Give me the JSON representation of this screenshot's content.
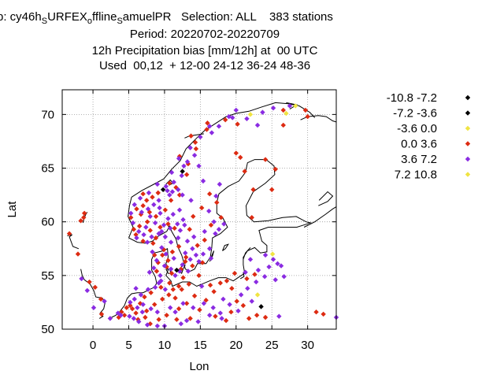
{
  "header": {
    "line1_a": "p: cy46h",
    "line1_sub1": "S",
    "line1_b": "URFEX",
    "line1_sub2": "o",
    "line1_c": "ffline",
    "line1_sub3": "S",
    "line1_d": "amuelPR   Selection: ALL    383 stations",
    "line2": "Period: 20220702-20220709",
    "line3": "12h Precipitation bias [mm/12h] at  00 UTC",
    "line4": "Used  00,12  + 12-00 24-12 36-24 48-36"
  },
  "chart_data": {
    "type": "scatter",
    "xlabel": "Lon",
    "ylabel": "Lat",
    "xlim": [
      -4.3,
      34
    ],
    "ylim": [
      50,
      72.3
    ],
    "xticks": [
      0,
      5,
      10,
      15,
      20,
      25,
      30
    ],
    "yticks": [
      50,
      55,
      60,
      65,
      70
    ],
    "grid": true,
    "legend_position": "right",
    "classes": [
      {
        "label": "-10.8 -7.2",
        "color": "#000000"
      },
      {
        "label": "-7.2 -3.6",
        "color": "#000000"
      },
      {
        "label": "-3.6 0.0",
        "color": "#f0e442"
      },
      {
        "label": "0.0 3.6",
        "color": "#dd2b12"
      },
      {
        "label": "3.6 7.2",
        "color": "#8a2be2"
      },
      {
        "label": "7.2 10.8",
        "color": "#f0e442"
      }
    ],
    "points": [
      [
        23.5,
        52.1,
        1
      ],
      [
        12.5,
        64.7,
        1
      ],
      [
        11.7,
        55.5,
        1
      ],
      [
        9.8,
        63.0,
        1
      ],
      [
        9.5,
        54.5,
        4
      ],
      [
        23.0,
        53.2,
        2
      ],
      [
        25.1,
        57.0,
        2
      ],
      [
        27.0,
        70.1,
        2
      ],
      [
        28.3,
        70.8,
        2
      ],
      [
        22.0,
        70.0,
        2
      ],
      [
        18.5,
        69.5,
        3
      ],
      [
        20.2,
        69.1,
        3
      ],
      [
        26.6,
        70.4,
        3
      ],
      [
        29.7,
        70.4,
        3
      ],
      [
        15.9,
        68.6,
        3
      ],
      [
        14.3,
        67.4,
        3
      ],
      [
        13.3,
        65.4,
        3
      ],
      [
        14.4,
        66.8,
        3
      ],
      [
        12.1,
        66.1,
        3
      ],
      [
        13.1,
        64.4,
        3
      ],
      [
        10.7,
        63.6,
        3
      ],
      [
        11.6,
        63.2,
        3
      ],
      [
        9.1,
        62.7,
        3
      ],
      [
        8.3,
        62.3,
        3
      ],
      [
        7.5,
        62.0,
        3
      ],
      [
        7.0,
        61.5,
        3
      ],
      [
        6.1,
        61.2,
        3
      ],
      [
        7.9,
        60.9,
        3
      ],
      [
        6.7,
        60.7,
        3
      ],
      [
        8.8,
        60.5,
        3
      ],
      [
        7.6,
        60.0,
        3
      ],
      [
        6.5,
        59.6,
        3
      ],
      [
        9.4,
        59.5,
        3
      ],
      [
        8.0,
        59.2,
        3
      ],
      [
        10.5,
        59.8,
        3
      ],
      [
        11.4,
        59.4,
        3
      ],
      [
        8.8,
        58.5,
        3
      ],
      [
        7.0,
        58.2,
        3
      ],
      [
        6.0,
        58.8,
        3
      ],
      [
        5.7,
        59.3,
        3
      ],
      [
        10.1,
        61.1,
        3
      ],
      [
        10.9,
        62.0,
        3
      ],
      [
        12.1,
        62.5,
        3
      ],
      [
        14.0,
        60.5,
        3
      ],
      [
        13.5,
        59.3,
        3
      ],
      [
        15.2,
        61.3,
        3
      ],
      [
        16.3,
        62.6,
        3
      ],
      [
        17.3,
        61.8,
        3
      ],
      [
        16.5,
        59.7,
        3
      ],
      [
        17.9,
        60.4,
        3
      ],
      [
        15.6,
        58.3,
        3
      ],
      [
        14.6,
        57.8,
        3
      ],
      [
        13.0,
        56.7,
        3
      ],
      [
        13.9,
        55.9,
        3
      ],
      [
        12.9,
        56.3,
        3
      ],
      [
        11.1,
        57.2,
        3
      ],
      [
        12.0,
        57.7,
        3
      ],
      [
        12.3,
        55.6,
        3
      ],
      [
        11.0,
        55.2,
        3
      ],
      [
        10.3,
        55.8,
        3
      ],
      [
        9.1,
        56.2,
        3
      ],
      [
        8.6,
        56.9,
        3
      ],
      [
        9.9,
        57.4,
        3
      ],
      [
        10.5,
        56.4,
        3
      ],
      [
        12.6,
        54.8,
        3
      ],
      [
        10.7,
        54.3,
        3
      ],
      [
        9.5,
        53.9,
        3
      ],
      [
        8.1,
        53.4,
        3
      ],
      [
        7.2,
        53.0,
        3
      ],
      [
        6.6,
        52.4,
        3
      ],
      [
        5.5,
        51.9,
        3
      ],
      [
        6.0,
        51.5,
        3
      ],
      [
        7.5,
        51.7,
        3
      ],
      [
        8.6,
        52.3,
        3
      ],
      [
        9.7,
        52.8,
        3
      ],
      [
        10.6,
        53.2,
        3
      ],
      [
        11.5,
        52.9,
        3
      ],
      [
        12.4,
        53.7,
        3
      ],
      [
        13.4,
        54.2,
        3
      ],
      [
        13.1,
        52.4,
        3
      ],
      [
        14.2,
        53.1,
        3
      ],
      [
        12.0,
        51.9,
        3
      ],
      [
        10.3,
        51.3,
        3
      ],
      [
        11.7,
        50.9,
        3
      ],
      [
        13.6,
        51.0,
        3
      ],
      [
        14.9,
        51.8,
        3
      ],
      [
        15.8,
        52.7,
        3
      ],
      [
        16.9,
        53.5,
        3
      ],
      [
        17.8,
        54.3,
        3
      ],
      [
        18.7,
        54.5,
        3
      ],
      [
        19.4,
        53.8,
        3
      ],
      [
        20.1,
        52.6,
        3
      ],
      [
        21.0,
        52.2,
        3
      ],
      [
        19.3,
        51.6,
        3
      ],
      [
        17.1,
        51.2,
        3
      ],
      [
        18.6,
        50.8,
        3
      ],
      [
        21.8,
        51.0,
        3
      ],
      [
        22.9,
        51.3,
        3
      ],
      [
        24.1,
        51.1,
        3
      ],
      [
        19.8,
        55.2,
        3
      ],
      [
        21.5,
        54.7,
        3
      ],
      [
        22.6,
        55.1,
        3
      ],
      [
        4.4,
        51.3,
        3
      ],
      [
        3.6,
        51.1,
        3
      ],
      [
        1.1,
        52.8,
        3
      ],
      [
        0.3,
        53.9,
        3
      ],
      [
        -0.5,
        54.4,
        3
      ],
      [
        1.2,
        51.4,
        3
      ],
      [
        -2.1,
        57.0,
        3
      ],
      [
        -3.3,
        58.9,
        3
      ],
      [
        -1.3,
        60.4,
        3
      ],
      [
        -1.2,
        60.8,
        3
      ],
      [
        -1.7,
        60.1,
        3
      ],
      [
        5.3,
        60.4,
        3
      ],
      [
        7.0,
        62.6,
        3
      ],
      [
        13.7,
        68.0,
        3
      ],
      [
        16.0,
        69.2,
        3
      ],
      [
        24.1,
        65.8,
        3
      ],
      [
        21.2,
        64.7,
        3
      ],
      [
        20.0,
        66.4,
        3
      ],
      [
        20.6,
        66.0,
        3
      ],
      [
        22.4,
        63.0,
        3
      ],
      [
        25.5,
        64.9,
        3
      ],
      [
        25.0,
        63.0,
        3
      ],
      [
        22.2,
        60.4,
        3
      ],
      [
        31.2,
        51.6,
        3
      ],
      [
        32.2,
        51.4,
        3
      ],
      [
        26.6,
        69.0,
        3
      ],
      [
        30.0,
        69.8,
        3
      ],
      [
        8.4,
        58.0,
        3
      ],
      [
        5.2,
        52.2,
        3
      ],
      [
        4.7,
        52.0,
        3
      ],
      [
        4.0,
        51.6,
        3
      ],
      [
        6.3,
        50.9,
        3
      ],
      [
        8.0,
        50.5,
        3
      ],
      [
        9.2,
        50.9,
        3
      ],
      [
        7.3,
        51.1,
        3
      ],
      [
        16.4,
        54.1,
        3
      ],
      [
        14.8,
        55.0,
        3
      ],
      [
        15.3,
        56.2,
        3
      ],
      [
        12.0,
        54.0,
        3
      ],
      [
        11.2,
        53.7,
        3
      ],
      [
        8.9,
        55.4,
        3
      ],
      [
        9.7,
        56.9,
        3
      ],
      [
        27.5,
        70.8,
        4
      ],
      [
        25.2,
        70.6,
        4
      ],
      [
        23.7,
        70.2,
        4
      ],
      [
        21.5,
        69.6,
        4
      ],
      [
        19.5,
        69.7,
        4
      ],
      [
        17.6,
        68.9,
        4
      ],
      [
        16.6,
        68.3,
        4
      ],
      [
        15.0,
        67.9,
        4
      ],
      [
        14.2,
        66.2,
        4
      ],
      [
        13.2,
        65.6,
        4
      ],
      [
        12.7,
        65.2,
        4
      ],
      [
        12.4,
        64.3,
        4
      ],
      [
        11.3,
        63.7,
        4
      ],
      [
        10.2,
        63.3,
        4
      ],
      [
        11.9,
        63.0,
        4
      ],
      [
        10.7,
        62.5,
        4
      ],
      [
        9.2,
        62.0,
        4
      ],
      [
        8.5,
        61.6,
        4
      ],
      [
        7.7,
        61.2,
        4
      ],
      [
        6.8,
        60.9,
        4
      ],
      [
        8.0,
        60.5,
        4
      ],
      [
        9.4,
        60.8,
        4
      ],
      [
        10.5,
        60.3,
        4
      ],
      [
        11.2,
        60.7,
        4
      ],
      [
        12.1,
        61.1,
        4
      ],
      [
        9.9,
        59.7,
        4
      ],
      [
        8.7,
        59.9,
        4
      ],
      [
        7.4,
        59.5,
        4
      ],
      [
        6.4,
        59.1,
        4
      ],
      [
        7.1,
        58.8,
        4
      ],
      [
        8.2,
        58.6,
        4
      ],
      [
        9.6,
        59.1,
        4
      ],
      [
        10.8,
        59.4,
        4
      ],
      [
        11.8,
        59.8,
        4
      ],
      [
        12.6,
        60.2,
        4
      ],
      [
        11.9,
        58.5,
        4
      ],
      [
        10.9,
        58.1,
        4
      ],
      [
        9.6,
        57.6,
        4
      ],
      [
        8.3,
        57.2,
        4
      ],
      [
        10.2,
        57.0,
        4
      ],
      [
        11.3,
        56.6,
        4
      ],
      [
        12.5,
        56.0,
        4
      ],
      [
        13.6,
        56.5,
        4
      ],
      [
        14.4,
        56.9,
        4
      ],
      [
        16.3,
        57.5,
        4
      ],
      [
        15.4,
        57.0,
        4
      ],
      [
        13.9,
        57.5,
        4
      ],
      [
        12.9,
        57.1,
        4
      ],
      [
        14.1,
        58.6,
        4
      ],
      [
        13.2,
        58.2,
        4
      ],
      [
        12.2,
        59.2,
        4
      ],
      [
        15.6,
        59.1,
        4
      ],
      [
        16.9,
        60.0,
        4
      ],
      [
        17.6,
        59.3,
        4
      ],
      [
        18.3,
        59.8,
        4
      ],
      [
        16.2,
        61.0,
        4
      ],
      [
        17.2,
        62.4,
        4
      ],
      [
        17.7,
        63.5,
        4
      ],
      [
        15.4,
        63.8,
        4
      ],
      [
        14.8,
        65.2,
        4
      ],
      [
        13.7,
        62.0,
        4
      ],
      [
        12.5,
        62.5,
        4
      ],
      [
        11.0,
        64.6,
        4
      ],
      [
        10.4,
        62.9,
        4
      ],
      [
        9.0,
        63.5,
        4
      ],
      [
        7.8,
        62.7,
        4
      ],
      [
        6.6,
        62.2,
        4
      ],
      [
        5.8,
        61.6,
        4
      ],
      [
        5.3,
        60.8,
        4
      ],
      [
        5.6,
        59.9,
        4
      ],
      [
        6.1,
        58.5,
        4
      ],
      [
        7.6,
        58.1,
        4
      ],
      [
        9.2,
        58.9,
        4
      ],
      [
        10.0,
        55.9,
        4
      ],
      [
        10.9,
        55.6,
        4
      ],
      [
        12.1,
        55.4,
        4
      ],
      [
        11.5,
        55.0,
        4
      ],
      [
        9.4,
        55.0,
        4
      ],
      [
        8.5,
        55.7,
        4
      ],
      [
        8.9,
        56.4,
        4
      ],
      [
        9.2,
        54.3,
        4
      ],
      [
        10.1,
        53.7,
        4
      ],
      [
        8.7,
        53.9,
        4
      ],
      [
        7.7,
        53.7,
        4
      ],
      [
        6.7,
        53.2,
        4
      ],
      [
        5.8,
        52.8,
        4
      ],
      [
        5.2,
        52.5,
        4
      ],
      [
        6.2,
        52.0,
        4
      ],
      [
        7.0,
        52.3,
        4
      ],
      [
        8.1,
        51.9,
        4
      ],
      [
        9.0,
        51.6,
        4
      ],
      [
        10.8,
        52.0,
        4
      ],
      [
        12.6,
        52.4,
        4
      ],
      [
        14.0,
        52.0,
        4
      ],
      [
        15.5,
        52.4,
        4
      ],
      [
        16.8,
        52.0,
        4
      ],
      [
        18.2,
        52.8,
        4
      ],
      [
        20.7,
        53.2,
        4
      ],
      [
        21.6,
        53.8,
        4
      ],
      [
        22.8,
        54.4,
        4
      ],
      [
        24.0,
        54.9,
        4
      ],
      [
        25.5,
        54.6,
        4
      ],
      [
        26.3,
        55.9,
        4
      ],
      [
        25.2,
        56.5,
        4
      ],
      [
        24.1,
        56.9,
        4
      ],
      [
        26.7,
        54.9,
        4
      ],
      [
        22.0,
        56.5,
        4
      ],
      [
        23.1,
        55.5,
        4
      ],
      [
        19.1,
        52.3,
        4
      ],
      [
        17.8,
        51.5,
        4
      ],
      [
        16.3,
        51.3,
        4
      ],
      [
        14.7,
        50.7,
        4
      ],
      [
        13.1,
        50.8,
        4
      ],
      [
        11.5,
        51.6,
        4
      ],
      [
        10.0,
        50.3,
        4
      ],
      [
        9.0,
        50.3,
        4
      ],
      [
        7.6,
        50.4,
        4
      ],
      [
        6.4,
        50.7,
        4
      ],
      [
        5.7,
        51.0,
        4
      ],
      [
        5.1,
        51.2,
        4
      ],
      [
        3.9,
        51.3,
        4
      ],
      [
        3.5,
        51.5,
        4
      ],
      [
        2.4,
        51.0,
        4
      ],
      [
        0.1,
        52.0,
        4
      ],
      [
        -0.8,
        53.6,
        4
      ],
      [
        -1.6,
        54.7,
        4
      ],
      [
        1.6,
        52.6,
        4
      ],
      [
        26.0,
        51.2,
        4
      ],
      [
        34.0,
        51.1,
        4
      ],
      [
        20.0,
        70.4,
        4
      ],
      [
        23.0,
        69.0,
        4
      ],
      [
        19.0,
        69.8,
        4
      ],
      [
        16.3,
        68.9,
        4
      ],
      [
        13.6,
        66.9,
        4
      ],
      [
        12.0,
        65.9,
        4
      ],
      [
        11.1,
        62.8,
        4
      ],
      [
        9.3,
        61.3,
        4
      ],
      [
        10.1,
        58.6,
        4
      ],
      [
        13.3,
        55.4,
        4
      ],
      [
        14.8,
        56.3,
        4
      ],
      [
        12.8,
        59.7,
        4
      ],
      [
        16.5,
        56.6,
        4
      ],
      [
        17.1,
        58.9,
        4
      ],
      [
        7.9,
        55.3,
        4
      ],
      [
        6.0,
        53.8,
        4
      ],
      [
        6.9,
        51.6,
        4
      ],
      [
        12.3,
        50.5,
        4
      ],
      [
        15.2,
        54.0,
        4
      ],
      [
        18.0,
        51.0,
        4
      ],
      [
        20.3,
        51.7,
        4
      ],
      [
        22.2,
        52.6,
        4
      ],
      [
        24.6,
        55.8,
        4
      ],
      [
        21.3,
        55.3,
        4
      ],
      [
        25.8,
        56.1,
        4
      ],
      [
        8.1,
        61.7,
        6
      ],
      [
        7.1,
        60.2,
        6
      ],
      [
        9.7,
        58.0,
        6
      ],
      [
        11.4,
        54.4,
        6
      ],
      [
        9.4,
        53.2,
        6
      ],
      [
        4.6,
        51.4,
        6
      ],
      [
        19.6,
        65.1,
        6
      ],
      [
        27.8,
        70.6,
        6
      ],
      [
        1.9,
        51.9,
        6
      ],
      [
        -0.4,
        51.5,
        6
      ],
      [
        20.8,
        51.1,
        6
      ],
      [
        16.2,
        55.2,
        6
      ]
    ]
  }
}
